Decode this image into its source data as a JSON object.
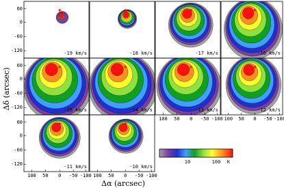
{
  "axes": {
    "y_label": "Δδ (arcsec)",
    "x_label": "Δα (arcsec)",
    "y_ticks": [
      "60",
      "0",
      "-60",
      "-120"
    ],
    "x_ticks": [
      "100",
      "50",
      "0",
      "-50",
      "-100"
    ]
  },
  "panels": [
    {
      "label": "-19 km/s"
    },
    {
      "label": "-18 km/s"
    },
    {
      "label": "-17 km/s"
    },
    {
      "label": "-16 km/s"
    },
    {
      "label": "-15 km/s"
    },
    {
      "label": "-14 km/s"
    },
    {
      "label": "-13 km/s"
    },
    {
      "label": "-12 km/s"
    },
    {
      "label": "-11 km/s"
    },
    {
      "label": "-10 km/s"
    }
  ],
  "colorbar": {
    "ticks": [
      "10",
      "100"
    ],
    "unit": "K"
  }
}
